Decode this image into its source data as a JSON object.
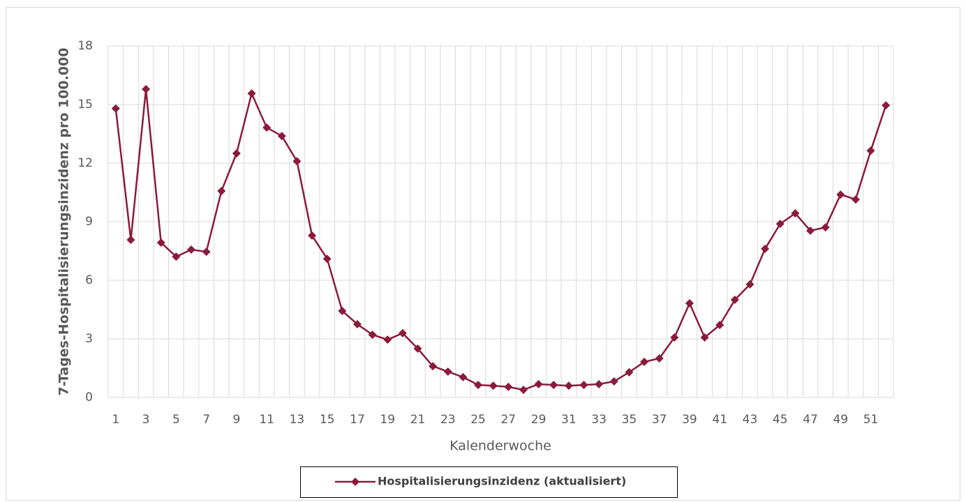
{
  "chart_data": {
    "type": "line",
    "y_label": "7-Tages-Hospitalisierungsinzidenz pro 100.000",
    "x_label": "Kalenderwoche",
    "categories": [
      1,
      null,
      3,
      null,
      5,
      null,
      7,
      null,
      9,
      null,
      11,
      null,
      13,
      null,
      15,
      null,
      17,
      null,
      19,
      null,
      21,
      null,
      23,
      null,
      25,
      null,
      27,
      null,
      29,
      null,
      31,
      null,
      33,
      null,
      35,
      null,
      37,
      null,
      39,
      null,
      41,
      null,
      43,
      null,
      45,
      null,
      47,
      null,
      49,
      null,
      51,
      null
    ],
    "series": [
      {
        "name": "Hospitalisierungsinzidenz (aktualisiert)",
        "color": "#8b1a3b",
        "values": [
          14.8,
          8.07,
          15.79,
          7.93,
          7.21,
          7.57,
          7.46,
          10.57,
          12.5,
          15.57,
          13.82,
          13.39,
          12.1,
          8.29,
          7.1,
          4.43,
          3.75,
          3.21,
          2.96,
          3.29,
          2.5,
          1.6,
          1.32,
          1.04,
          0.64,
          0.6,
          0.54,
          0.39,
          0.68,
          0.64,
          0.6,
          0.64,
          0.68,
          0.82,
          1.29,
          1.82,
          2.0,
          3.07,
          4.82,
          3.07,
          3.71,
          5.0,
          5.79,
          7.61,
          8.89,
          9.43,
          8.54,
          8.71,
          10.39,
          10.14,
          12.64,
          14.96
        ]
      }
    ],
    "ylim": [
      0,
      18
    ],
    "yticks": [
      0,
      3,
      6,
      9,
      12,
      15,
      18
    ],
    "grid": true
  }
}
